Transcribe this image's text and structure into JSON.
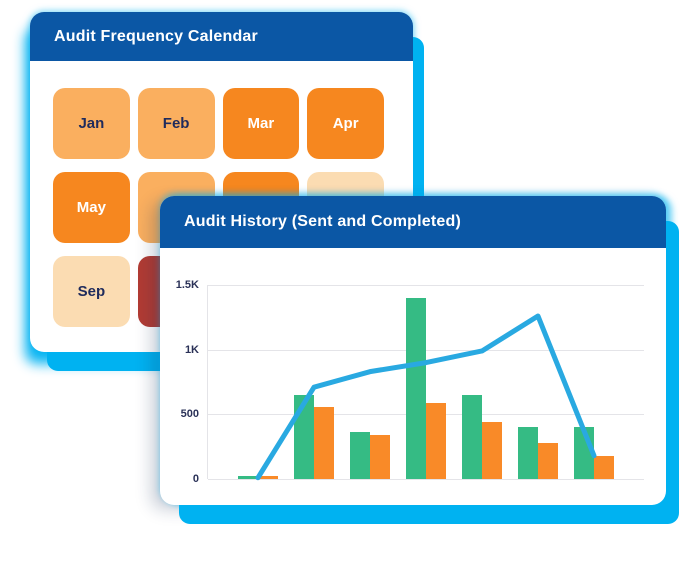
{
  "back_card": {
    "title": "Audit Frequency Calendar",
    "months": [
      {
        "label": "Jan",
        "bg": "#FAAF5F",
        "fg": "#1F2B5C"
      },
      {
        "label": "Feb",
        "bg": "#FAAF5F",
        "fg": "#1F2B5C"
      },
      {
        "label": "Mar",
        "bg": "#F6871F",
        "fg": "#FFFFFF"
      },
      {
        "label": "Apr",
        "bg": "#F6871F",
        "fg": "#FFFFFF"
      },
      {
        "label": "May",
        "bg": "#F6871F",
        "fg": "#FFFFFF"
      },
      {
        "label": "",
        "bg": "#FAAF5F",
        "fg": "#1F2B5C"
      },
      {
        "label": "",
        "bg": "#F6871F",
        "fg": "#FFFFFF"
      },
      {
        "label": "",
        "bg": "#FBDCB2",
        "fg": "#1F2B5C"
      },
      {
        "label": "Sep",
        "bg": "#FBDCB2",
        "fg": "#1F2B5C"
      },
      {
        "label": "",
        "bg": "#B23B33",
        "fg": "#FFFFFF"
      }
    ]
  },
  "front_card": {
    "title": "Audit History (Sent and Completed)"
  },
  "chart_data": {
    "type": "combo-grouped-bar-and-line",
    "title": "Audit History (Sent and Completed)",
    "x_labels": [],
    "series": [
      {
        "name": "green-bars",
        "type": "bar",
        "color": "#35BB84",
        "values": [
          20,
          650,
          360,
          1400,
          650,
          400,
          400
        ]
      },
      {
        "name": "orange-bars",
        "type": "bar",
        "color": "#F98A28",
        "values": [
          20,
          560,
          340,
          590,
          440,
          280,
          175
        ]
      },
      {
        "name": "trend-line",
        "type": "line",
        "color": "#29A9E1",
        "values": [
          10,
          710,
          830,
          900,
          990,
          1260,
          180
        ]
      }
    ],
    "y_axis": {
      "ticks": [
        {
          "label": "1.5K",
          "value": 1500
        },
        {
          "label": "1K",
          "value": 1000
        },
        {
          "label": "500",
          "value": 500
        },
        {
          "label": "0",
          "value": 0
        }
      ],
      "lim": [
        0,
        1500
      ]
    },
    "grid": "horizontal",
    "legend": "none"
  },
  "colors": {
    "header_blue": "#0B57A5",
    "glow_cyan": "#00B2F1",
    "gridline": "#E4E4E8",
    "axis_text": "#2A3157"
  }
}
